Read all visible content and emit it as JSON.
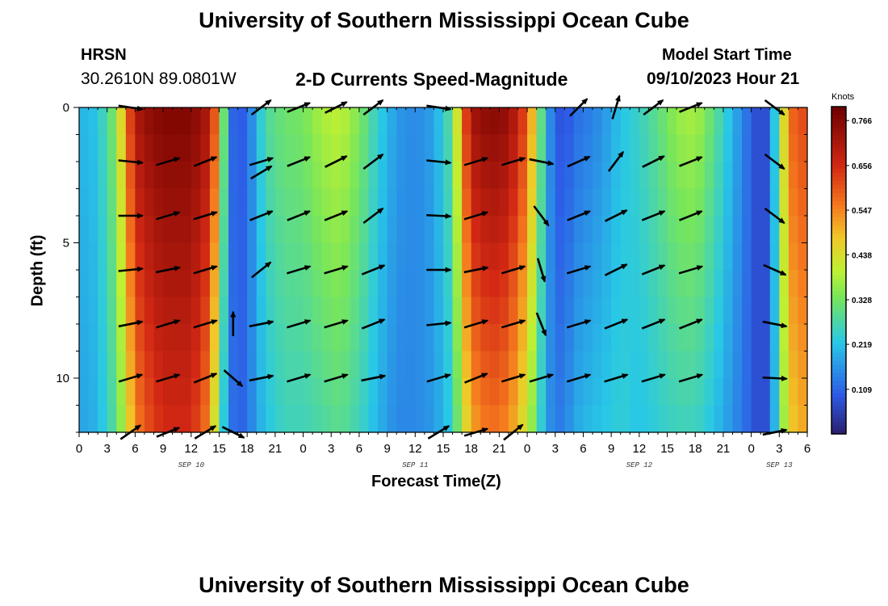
{
  "header": {
    "title": "University of Southern Mississippi Ocean Cube",
    "station": "HRSN",
    "coords": "30.2610N  89.0801W",
    "subtitle": "2-D Currents Speed-Magnitude",
    "model_start_label": "Model Start Time",
    "model_start_value": "09/10/2023 Hour 21"
  },
  "footer": {
    "title": "University of Southern Mississippi Ocean Cube"
  },
  "colorbar": {
    "units": "Knots",
    "ticks": [
      0.109,
      0.219,
      0.328,
      0.438,
      0.547,
      0.656,
      0.766
    ],
    "tick_labels": [
      "0.109",
      "0.219",
      "0.328",
      "0.438",
      "0.547",
      "0.656",
      "0.766"
    ],
    "range": [
      0.0,
      0.8
    ]
  },
  "colors": {
    "low": "#2c1e6b",
    "mid": "#b8f030",
    "high": "#6e0000",
    "arrow": "#000000"
  },
  "chart_data": {
    "type": "heatmap",
    "title": "2-D Currents Speed-Magnitude",
    "xlabel": "Forecast Time(Z)",
    "ylabel": "Depth (ft)",
    "units": "Knots",
    "xlim": [
      0,
      78
    ],
    "ylim": [
      0,
      12
    ],
    "x_ticks": [
      0,
      3,
      6,
      9,
      12,
      15,
      18,
      21,
      24,
      27,
      30,
      33,
      36,
      39,
      42,
      45,
      48,
      51,
      54,
      57,
      60,
      63,
      66,
      69,
      72,
      75,
      78
    ],
    "x_tick_labels": [
      "0",
      "3",
      "6",
      "9",
      "12",
      "15",
      "18",
      "21",
      "0",
      "3",
      "6",
      "9",
      "12",
      "15",
      "18",
      "21",
      "0",
      "3",
      "6",
      "9",
      "12",
      "15",
      "18",
      "21",
      "0",
      "3",
      "6"
    ],
    "y_ticks": [
      0,
      5,
      10
    ],
    "y_tick_labels": [
      "0",
      "5",
      "10"
    ],
    "day_labels": [
      {
        "label": "SEP 10",
        "x": 12
      },
      {
        "label": "SEP 11",
        "x": 36
      },
      {
        "label": "SEP 12",
        "x": 60
      },
      {
        "label": "SEP 13",
        "x": 75
      }
    ],
    "speed_profile": {
      "hours": [
        0,
        2,
        4,
        5,
        6,
        7,
        9,
        12,
        14,
        15,
        16,
        17,
        18,
        19,
        20,
        22,
        24,
        26,
        28,
        30,
        32,
        34,
        36,
        38,
        40,
        41,
        42,
        44,
        46,
        48,
        50,
        51,
        52,
        53,
        54,
        56,
        58,
        60,
        62,
        64,
        66,
        68,
        70,
        72,
        73,
        74,
        75,
        76,
        77,
        78
      ],
      "surface": [
        0.2,
        0.22,
        0.35,
        0.55,
        0.7,
        0.74,
        0.77,
        0.77,
        0.7,
        0.5,
        0.13,
        0.09,
        0.11,
        0.2,
        0.28,
        0.32,
        0.33,
        0.38,
        0.4,
        0.34,
        0.24,
        0.17,
        0.15,
        0.18,
        0.3,
        0.55,
        0.72,
        0.76,
        0.74,
        0.6,
        0.2,
        0.1,
        0.08,
        0.12,
        0.13,
        0.16,
        0.22,
        0.25,
        0.3,
        0.36,
        0.38,
        0.3,
        0.2,
        0.1,
        0.06,
        0.1,
        0.35,
        0.55,
        0.62,
        0.6
      ],
      "bottom": [
        0.18,
        0.2,
        0.3,
        0.42,
        0.55,
        0.6,
        0.66,
        0.66,
        0.55,
        0.32,
        0.14,
        0.1,
        0.12,
        0.18,
        0.22,
        0.26,
        0.26,
        0.28,
        0.3,
        0.26,
        0.2,
        0.15,
        0.15,
        0.17,
        0.24,
        0.4,
        0.52,
        0.58,
        0.55,
        0.42,
        0.18,
        0.13,
        0.14,
        0.18,
        0.2,
        0.22,
        0.24,
        0.22,
        0.24,
        0.26,
        0.26,
        0.22,
        0.16,
        0.1,
        0.06,
        0.1,
        0.3,
        0.45,
        0.52,
        0.5
      ]
    },
    "vectors": [
      {
        "x": 5,
        "y": 0,
        "dx": 1.0,
        "dy": 0.15
      },
      {
        "x": 5,
        "y": 2,
        "dx": 1.0,
        "dy": 0.1
      },
      {
        "x": 5,
        "y": 4,
        "dx": 1.0,
        "dy": 0
      },
      {
        "x": 5,
        "y": 6,
        "dx": 1.0,
        "dy": -0.1
      },
      {
        "x": 5,
        "y": 8,
        "dx": 1.0,
        "dy": -0.2
      },
      {
        "x": 5,
        "y": 10,
        "dx": 1.0,
        "dy": -0.3
      },
      {
        "x": 5,
        "y": 12,
        "dx": 1.0,
        "dy": -0.7
      },
      {
        "x": 9,
        "y": 2,
        "dx": 1.0,
        "dy": -0.3
      },
      {
        "x": 9,
        "y": 4,
        "dx": 1.0,
        "dy": -0.3
      },
      {
        "x": 9,
        "y": 6,
        "dx": 1.0,
        "dy": -0.2
      },
      {
        "x": 9,
        "y": 8,
        "dx": 1.0,
        "dy": -0.3
      },
      {
        "x": 9,
        "y": 10,
        "dx": 1.0,
        "dy": -0.3
      },
      {
        "x": 9,
        "y": 12,
        "dx": 1.0,
        "dy": -0.4
      },
      {
        "x": 13,
        "y": 2,
        "dx": 1.0,
        "dy": -0.4
      },
      {
        "x": 13,
        "y": 4,
        "dx": 1.0,
        "dy": -0.3
      },
      {
        "x": 13,
        "y": 6,
        "dx": 1.0,
        "dy": -0.3
      },
      {
        "x": 13,
        "y": 8,
        "dx": 1.0,
        "dy": -0.3
      },
      {
        "x": 13,
        "y": 10,
        "dx": 1.0,
        "dy": -0.4
      },
      {
        "x": 13,
        "y": 12,
        "dx": 1.0,
        "dy": -0.6
      },
      {
        "x": 16,
        "y": 8,
        "dx": 0,
        "dy": -1.0
      },
      {
        "x": 16,
        "y": 10,
        "dx": 0.8,
        "dy": 0.7
      },
      {
        "x": 16,
        "y": 12,
        "dx": 1.0,
        "dy": 0.5
      },
      {
        "x": 19,
        "y": 0,
        "dx": 0.8,
        "dy": -0.6
      },
      {
        "x": 19,
        "y": 2,
        "dx": 1.0,
        "dy": -0.3
      },
      {
        "x": 19,
        "y": 2.4,
        "dx": 1.0,
        "dy": -0.6
      },
      {
        "x": 19,
        "y": 4,
        "dx": 1.0,
        "dy": -0.4
      },
      {
        "x": 19,
        "y": 6,
        "dx": 1.0,
        "dy": -0.8
      },
      {
        "x": 19,
        "y": 8,
        "dx": 1.0,
        "dy": -0.2
      },
      {
        "x": 19,
        "y": 10,
        "dx": 1.0,
        "dy": -0.2
      },
      {
        "x": 23,
        "y": 0,
        "dx": 1.0,
        "dy": -0.4
      },
      {
        "x": 23,
        "y": 2,
        "dx": 1.0,
        "dy": -0.4
      },
      {
        "x": 23,
        "y": 4,
        "dx": 1.0,
        "dy": -0.4
      },
      {
        "x": 23,
        "y": 6,
        "dx": 1.0,
        "dy": -0.3
      },
      {
        "x": 23,
        "y": 8,
        "dx": 1.0,
        "dy": -0.3
      },
      {
        "x": 23,
        "y": 10,
        "dx": 1.0,
        "dy": -0.3
      },
      {
        "x": 27,
        "y": 0,
        "dx": 1.0,
        "dy": -0.5
      },
      {
        "x": 27,
        "y": 2,
        "dx": 1.0,
        "dy": -0.5
      },
      {
        "x": 27,
        "y": 4,
        "dx": 1.0,
        "dy": -0.4
      },
      {
        "x": 27,
        "y": 6,
        "dx": 1.0,
        "dy": -0.3
      },
      {
        "x": 27,
        "y": 8,
        "dx": 1.0,
        "dy": -0.3
      },
      {
        "x": 27,
        "y": 10,
        "dx": 1.0,
        "dy": -0.3
      },
      {
        "x": 31,
        "y": 0,
        "dx": 0.8,
        "dy": -0.6
      },
      {
        "x": 31,
        "y": 2,
        "dx": 0.8,
        "dy": -0.6
      },
      {
        "x": 31,
        "y": 4,
        "dx": 0.8,
        "dy": -0.6
      },
      {
        "x": 31,
        "y": 6,
        "dx": 1.0,
        "dy": -0.4
      },
      {
        "x": 31,
        "y": 8,
        "dx": 1.0,
        "dy": -0.4
      },
      {
        "x": 31,
        "y": 10,
        "dx": 1.0,
        "dy": -0.2
      },
      {
        "x": 38,
        "y": 0,
        "dx": 1.0,
        "dy": 0.15
      },
      {
        "x": 38,
        "y": 2,
        "dx": 1.0,
        "dy": 0.1
      },
      {
        "x": 38,
        "y": 4,
        "dx": 1.0,
        "dy": 0.05
      },
      {
        "x": 38,
        "y": 6,
        "dx": 1.0,
        "dy": 0
      },
      {
        "x": 38,
        "y": 8,
        "dx": 1.0,
        "dy": -0.1
      },
      {
        "x": 38,
        "y": 10,
        "dx": 1.0,
        "dy": -0.3
      },
      {
        "x": 38,
        "y": 12,
        "dx": 1.0,
        "dy": -0.6
      },
      {
        "x": 42,
        "y": 2,
        "dx": 1.0,
        "dy": -0.3
      },
      {
        "x": 42,
        "y": 4,
        "dx": 1.0,
        "dy": -0.3
      },
      {
        "x": 42,
        "y": 6,
        "dx": 1.0,
        "dy": -0.2
      },
      {
        "x": 42,
        "y": 8,
        "dx": 1.0,
        "dy": -0.3
      },
      {
        "x": 42,
        "y": 10,
        "dx": 1.0,
        "dy": -0.4
      },
      {
        "x": 42,
        "y": 12,
        "dx": 1.0,
        "dy": -0.3
      },
      {
        "x": 46,
        "y": 2,
        "dx": 1.0,
        "dy": -0.3
      },
      {
        "x": 46,
        "y": 6,
        "dx": 1.0,
        "dy": -0.3
      },
      {
        "x": 46,
        "y": 8,
        "dx": 1.0,
        "dy": -0.3
      },
      {
        "x": 46,
        "y": 10,
        "dx": 1.0,
        "dy": -0.3
      },
      {
        "x": 46,
        "y": 12,
        "dx": 1.0,
        "dy": -0.8
      },
      {
        "x": 49,
        "y": 2,
        "dx": 1.0,
        "dy": 0.2
      },
      {
        "x": 49,
        "y": 4,
        "dx": 0.6,
        "dy": 0.8
      },
      {
        "x": 49,
        "y": 6,
        "dx": 0.3,
        "dy": 1.0
      },
      {
        "x": 49,
        "y": 8,
        "dx": 0.4,
        "dy": 1.0
      },
      {
        "x": 49,
        "y": 10,
        "dx": 1.0,
        "dy": -0.3
      },
      {
        "x": 53,
        "y": 0,
        "dx": 0.7,
        "dy": -0.7
      },
      {
        "x": 53,
        "y": 2,
        "dx": 0.9,
        "dy": -0.4
      },
      {
        "x": 53,
        "y": 4,
        "dx": 1.0,
        "dy": -0.4
      },
      {
        "x": 53,
        "y": 6,
        "dx": 1.0,
        "dy": -0.3
      },
      {
        "x": 53,
        "y": 8,
        "dx": 1.0,
        "dy": -0.3
      },
      {
        "x": 53,
        "y": 10,
        "dx": 1.0,
        "dy": -0.3
      },
      {
        "x": 57,
        "y": 0,
        "dx": 0.3,
        "dy": -1.0
      },
      {
        "x": 57,
        "y": 2,
        "dx": 0.6,
        "dy": -0.8
      },
      {
        "x": 57,
        "y": 4,
        "dx": 1.0,
        "dy": -0.5
      },
      {
        "x": 57,
        "y": 6,
        "dx": 1.0,
        "dy": -0.5
      },
      {
        "x": 57,
        "y": 8,
        "dx": 1.0,
        "dy": -0.4
      },
      {
        "x": 57,
        "y": 10,
        "dx": 1.0,
        "dy": -0.3
      },
      {
        "x": 61,
        "y": 0,
        "dx": 0.8,
        "dy": -0.6
      },
      {
        "x": 61,
        "y": 2,
        "dx": 1.0,
        "dy": -0.5
      },
      {
        "x": 61,
        "y": 4,
        "dx": 1.0,
        "dy": -0.4
      },
      {
        "x": 61,
        "y": 6,
        "dx": 1.0,
        "dy": -0.4
      },
      {
        "x": 61,
        "y": 8,
        "dx": 1.0,
        "dy": -0.4
      },
      {
        "x": 61,
        "y": 10,
        "dx": 1.0,
        "dy": -0.3
      },
      {
        "x": 65,
        "y": 0,
        "dx": 1.0,
        "dy": -0.4
      },
      {
        "x": 65,
        "y": 2,
        "dx": 1.0,
        "dy": -0.4
      },
      {
        "x": 65,
        "y": 4,
        "dx": 1.0,
        "dy": -0.4
      },
      {
        "x": 65,
        "y": 6,
        "dx": 1.0,
        "dy": -0.3
      },
      {
        "x": 65,
        "y": 8,
        "dx": 1.0,
        "dy": -0.4
      },
      {
        "x": 65,
        "y": 10,
        "dx": 1.0,
        "dy": -0.3
      },
      {
        "x": 74,
        "y": 0,
        "dx": 0.8,
        "dy": 0.6
      },
      {
        "x": 74,
        "y": 2,
        "dx": 0.8,
        "dy": 0.6
      },
      {
        "x": 74,
        "y": 4,
        "dx": 0.8,
        "dy": 0.6
      },
      {
        "x": 74,
        "y": 6,
        "dx": 0.9,
        "dy": 0.4
      },
      {
        "x": 74,
        "y": 8,
        "dx": 1.0,
        "dy": 0.2
      },
      {
        "x": 74,
        "y": 10,
        "dx": 1.0,
        "dy": 0.05
      },
      {
        "x": 74,
        "y": 12,
        "dx": 1.0,
        "dy": -0.2
      }
    ]
  }
}
